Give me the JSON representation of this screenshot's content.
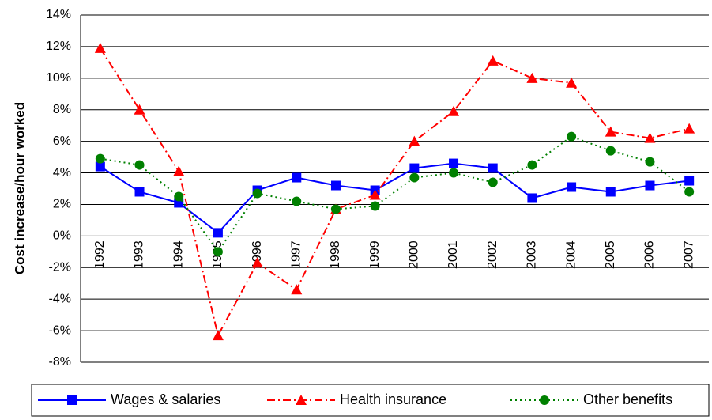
{
  "chart_data": {
    "type": "line",
    "y_label": "Cost increase/hour worked",
    "categories": [
      "1992",
      "1993",
      "1994",
      "1995",
      "1996",
      "1997",
      "1998",
      "1999",
      "2000",
      "2001",
      "2002",
      "2003",
      "2004",
      "2005",
      "2006",
      "2007"
    ],
    "series": [
      {
        "name": "Wages & salaries",
        "color": "#0000ff",
        "dash": "solid",
        "marker": "square",
        "values": [
          4.4,
          2.8,
          2.1,
          0.2,
          2.9,
          3.7,
          3.2,
          2.9,
          4.3,
          4.6,
          4.3,
          2.4,
          3.1,
          2.8,
          3.2,
          3.5
        ]
      },
      {
        "name": "Health insurance",
        "color": "#ff0000",
        "dash": "dashdot",
        "marker": "triangle",
        "values": [
          11.9,
          8.0,
          4.1,
          -6.3,
          -1.7,
          -3.4,
          1.7,
          2.6,
          6.0,
          7.9,
          11.1,
          10.0,
          9.7,
          6.6,
          6.2,
          6.8
        ]
      },
      {
        "name": "Other benefits",
        "color": "#008000",
        "dash": "dotted",
        "marker": "circle",
        "values": [
          4.9,
          4.5,
          2.5,
          -1.0,
          2.7,
          2.2,
          1.7,
          1.9,
          3.7,
          4.0,
          3.4,
          4.5,
          6.3,
          5.4,
          4.7,
          2.8
        ]
      }
    ],
    "ylim": [
      -8,
      14
    ],
    "yticks": [
      {
        "value": -8,
        "label": "-8%"
      },
      {
        "value": -6,
        "label": "-6%"
      },
      {
        "value": -4,
        "label": "-4%"
      },
      {
        "value": -2,
        "label": "-2%"
      },
      {
        "value": 0,
        "label": "0%"
      },
      {
        "value": 2,
        "label": "2%"
      },
      {
        "value": 4,
        "label": "4%"
      },
      {
        "value": 6,
        "label": "6%"
      },
      {
        "value": 8,
        "label": "8%"
      },
      {
        "value": 10,
        "label": "10%"
      },
      {
        "value": 12,
        "label": "12%"
      },
      {
        "value": 14,
        "label": "14%"
      }
    ],
    "grid": true,
    "legend": "bottom"
  }
}
